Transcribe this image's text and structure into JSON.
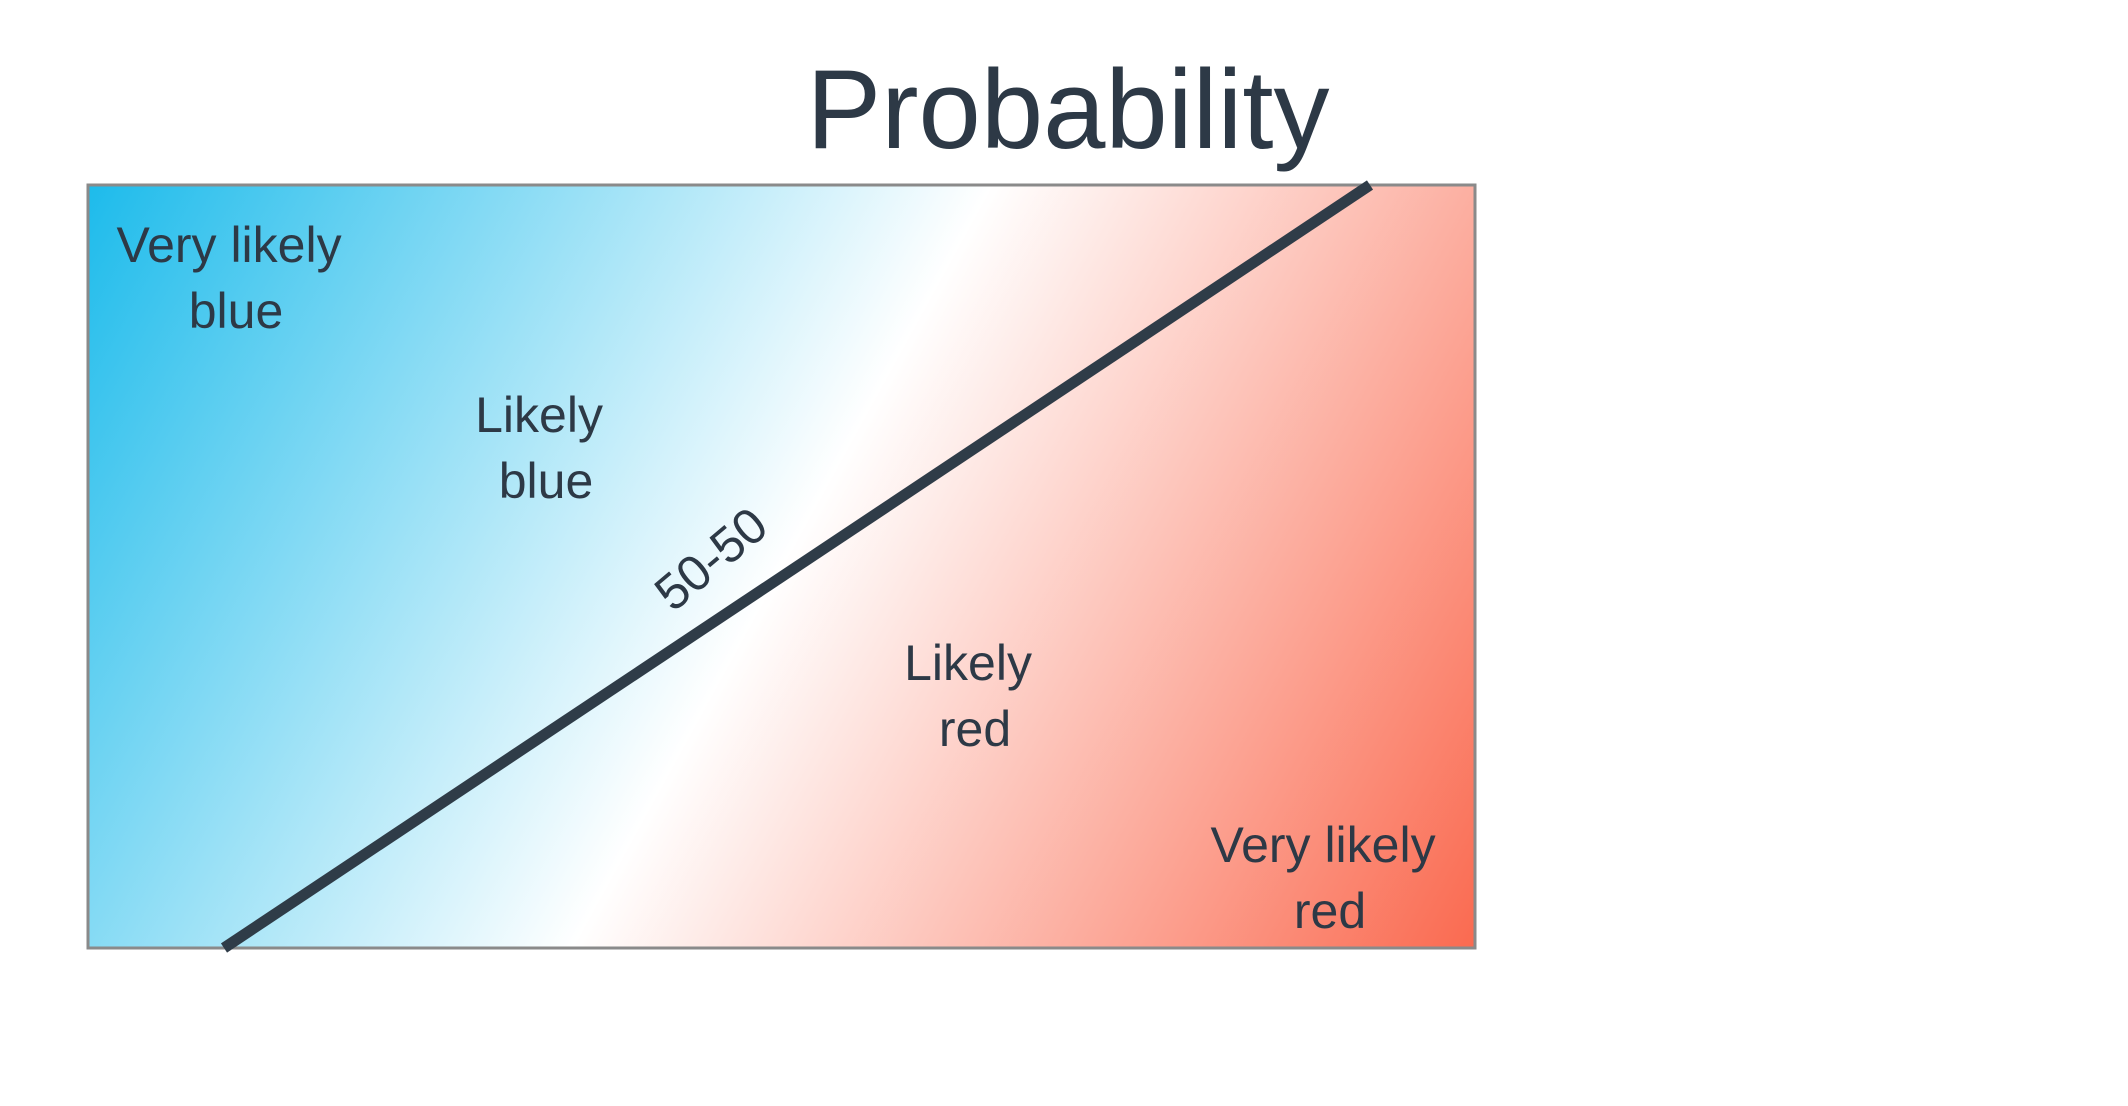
{
  "title": "Probability",
  "colors": {
    "blue": "#1dbbeb",
    "red": "#fa6a50",
    "white": "#ffffff",
    "line": "#2f3c48",
    "text": "#2d3946",
    "border": "#8a8a8a"
  },
  "regions": {
    "very_likely_blue": [
      "Very likely",
      "blue"
    ],
    "likely_blue": [
      "Likely",
      "blue"
    ],
    "fifty_fifty": "50-50",
    "likely_red": [
      "Likely",
      "red"
    ],
    "very_likely_red": [
      "Very likely",
      "red"
    ]
  }
}
